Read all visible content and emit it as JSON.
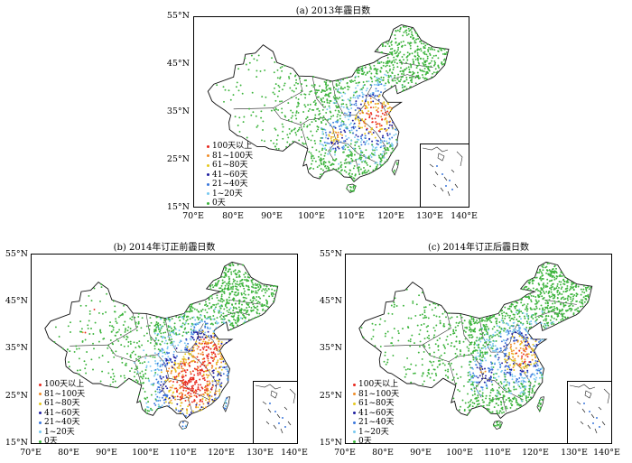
{
  "panels": [
    {
      "id": "a",
      "title": "(a) 2013年霾日数",
      "lat_labels": [
        "55°N",
        "45°N",
        "35°N",
        "25°N",
        "15°N"
      ],
      "lon_labels": [
        "70°E",
        "80°E",
        "90°E",
        "100°E",
        "110°E",
        "120°E",
        "130°E",
        "140°E"
      ]
    },
    {
      "id": "b",
      "title": "(b) 2014年订正前霾日数",
      "lat_labels": [
        "55°N",
        "45°N",
        "35°N",
        "25°N",
        "15°N"
      ],
      "lon_labels": [
        "70°E",
        "80°E",
        "90°E",
        "100°E",
        "110°E",
        "120°E",
        "130°E",
        "140°E"
      ]
    },
    {
      "id": "c",
      "title": "(c) 2014年订正后霾日数",
      "lat_labels": [
        "55°N",
        "45°N",
        "35°N",
        "25°N",
        "15°N"
      ],
      "lon_labels": [
        "70°E",
        "80°E",
        "90°E",
        "100°E",
        "110°E",
        "120°E",
        "130°E",
        "140°E"
      ]
    }
  ],
  "legend": [
    {
      "label": "100天以上",
      "color": "#e8281e"
    },
    {
      "label": "81~100天",
      "color": "#f08c28"
    },
    {
      "label": "61~80天",
      "color": "#e6c81e"
    },
    {
      "label": "41~60天",
      "color": "#1e1ea0"
    },
    {
      "label": "21~40天",
      "color": "#3c78dc"
    },
    {
      "label": "1~20天",
      "color": "#78c8f0"
    },
    {
      "label": "0天",
      "color": "#3cb43c"
    }
  ],
  "map": {
    "lon_range": [
      70,
      140
    ],
    "lat_range": [
      15,
      55
    ],
    "station_colors": {
      "very_high": "#e8281e",
      "high": "#f08c28",
      "mid_high": "#e6c81e",
      "mid": "#1e1ea0",
      "low_mid": "#3c78dc",
      "low": "#78c8f0",
      "none": "#3cb43c"
    }
  }
}
